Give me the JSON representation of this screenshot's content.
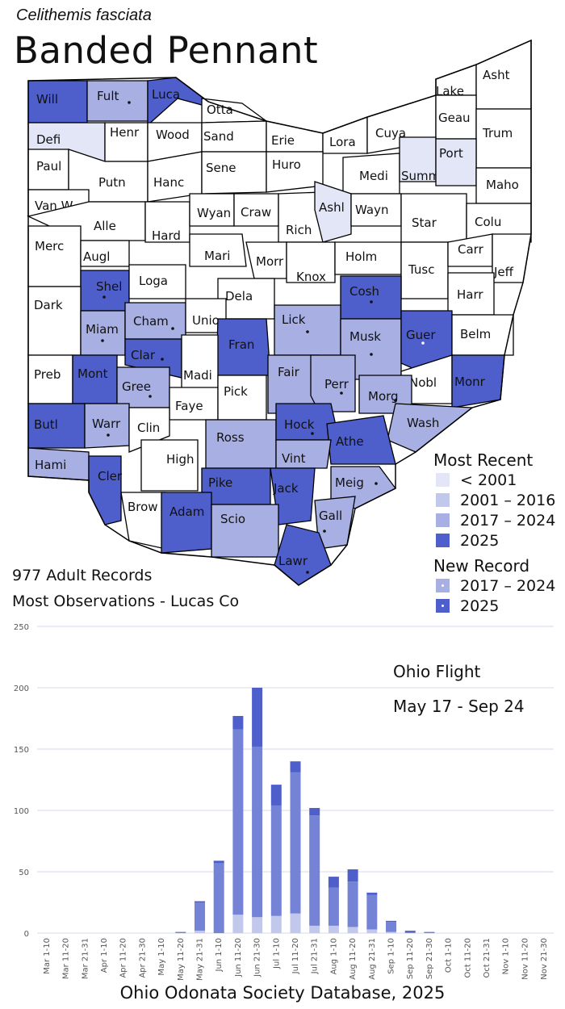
{
  "header": {
    "scientific_name": "Celithemis fasciata",
    "common_name": "Banded Pennant"
  },
  "colors": {
    "lt2001": "#e3e6f7",
    "c2001_2016": "#c2c8ec",
    "c2017_2024": "#a8b0e3",
    "c2025": "#4e5fcb",
    "none": "#ffffff"
  },
  "counties": [
    {
      "name": "Will",
      "cat": "c2025"
    },
    {
      "name": "Fult",
      "cat": "c2017_2024",
      "new": "dark"
    },
    {
      "name": "Luca",
      "cat": "c2025"
    },
    {
      "name": "Otta"
    },
    {
      "name": "Defi",
      "cat": "lt2001"
    },
    {
      "name": "Henr"
    },
    {
      "name": "Wood"
    },
    {
      "name": "Sand"
    },
    {
      "name": "Erie"
    },
    {
      "name": "Lora"
    },
    {
      "name": "Cuya"
    },
    {
      "name": "Lake"
    },
    {
      "name": "Asht"
    },
    {
      "name": "Geau"
    },
    {
      "name": "Trum"
    },
    {
      "name": "Paul"
    },
    {
      "name": "Putn"
    },
    {
      "name": "Hanc"
    },
    {
      "name": "Sene"
    },
    {
      "name": "Huro"
    },
    {
      "name": "Medi"
    },
    {
      "name": "Summ",
      "cat": "lt2001"
    },
    {
      "name": "Port",
      "cat": "lt2001"
    },
    {
      "name": "Maho"
    },
    {
      "name": "Van W"
    },
    {
      "name": "Alle"
    },
    {
      "name": "Hard"
    },
    {
      "name": "Wyan"
    },
    {
      "name": "Craw"
    },
    {
      "name": "Rich"
    },
    {
      "name": "Ashl",
      "cat": "lt2001"
    },
    {
      "name": "Wayn"
    },
    {
      "name": "Star"
    },
    {
      "name": "Colu"
    },
    {
      "name": "Merc"
    },
    {
      "name": "Augl"
    },
    {
      "name": "Mari"
    },
    {
      "name": "Morr"
    },
    {
      "name": "Knox"
    },
    {
      "name": "Holm"
    },
    {
      "name": "Tusc"
    },
    {
      "name": "Carr"
    },
    {
      "name": "Jeff"
    },
    {
      "name": "Shel",
      "cat": "c2025",
      "new": "dark"
    },
    {
      "name": "Loga"
    },
    {
      "name": "Dela"
    },
    {
      "name": "Cosh",
      "cat": "c2025",
      "new": "dark"
    },
    {
      "name": "Harr"
    },
    {
      "name": "Dark"
    },
    {
      "name": "Miam",
      "cat": "c2017_2024",
      "new": "dark"
    },
    {
      "name": "Cham",
      "cat": "c2017_2024",
      "new": "dark"
    },
    {
      "name": "Unio"
    },
    {
      "name": "Lick",
      "cat": "c2017_2024",
      "new": "dark"
    },
    {
      "name": "Musk",
      "cat": "c2017_2024",
      "new": "dark"
    },
    {
      "name": "Guer",
      "cat": "c2025",
      "new": "light"
    },
    {
      "name": "Belm"
    },
    {
      "name": "Clar",
      "cat": "c2025",
      "new": "dark"
    },
    {
      "name": "Fran",
      "cat": "c2025"
    },
    {
      "name": "Madi"
    },
    {
      "name": "Fair",
      "cat": "c2017_2024"
    },
    {
      "name": "Perr",
      "cat": "c2017_2024",
      "new": "dark"
    },
    {
      "name": "Nobl"
    },
    {
      "name": "Monr",
      "cat": "c2025"
    },
    {
      "name": "Preb"
    },
    {
      "name": "Mont",
      "cat": "c2025"
    },
    {
      "name": "Gree",
      "cat": "c2017_2024",
      "new": "dark"
    },
    {
      "name": "Faye"
    },
    {
      "name": "Pick"
    },
    {
      "name": "Morg",
      "cat": "c2017_2024",
      "new": "dark"
    },
    {
      "name": "Butl",
      "cat": "c2025"
    },
    {
      "name": "Warr",
      "cat": "c2017_2024",
      "new": "dark"
    },
    {
      "name": "Clin"
    },
    {
      "name": "Ross",
      "cat": "c2017_2024"
    },
    {
      "name": "Hock",
      "cat": "c2025",
      "new": "dark"
    },
    {
      "name": "Wash",
      "cat": "c2017_2024"
    },
    {
      "name": "Athe",
      "cat": "c2025"
    },
    {
      "name": "Hami",
      "cat": "c2017_2024"
    },
    {
      "name": "Cler",
      "cat": "c2025"
    },
    {
      "name": "High"
    },
    {
      "name": "Vint",
      "cat": "c2017_2024"
    },
    {
      "name": "Meig",
      "cat": "c2017_2024",
      "new": "dark"
    },
    {
      "name": "Pike",
      "cat": "c2025"
    },
    {
      "name": "Jack",
      "cat": "c2025"
    },
    {
      "name": "Brow"
    },
    {
      "name": "Adam",
      "cat": "c2025"
    },
    {
      "name": "Scio",
      "cat": "c2017_2024"
    },
    {
      "name": "Gall",
      "cat": "c2017_2024",
      "new": "dark"
    },
    {
      "name": "Lawr",
      "cat": "c2025",
      "new": "dark"
    }
  ],
  "legend": {
    "most_recent_title": "Most Recent",
    "items": [
      {
        "label": "< 2001",
        "cat": "lt2001"
      },
      {
        "label": "2001 – 2016",
        "cat": "c2001_2016"
      },
      {
        "label": "2017 – 2024",
        "cat": "c2017_2024"
      },
      {
        "label": "2025",
        "cat": "c2025"
      }
    ],
    "new_record_title": "New Record",
    "new_items": [
      {
        "label": "2017 – 2024",
        "cat": "c2017_2024"
      },
      {
        "label": "2025",
        "cat": "c2025"
      }
    ]
  },
  "stats": {
    "records": "977 Adult Records",
    "most_obs": "Most Observations - Lucas Co"
  },
  "chart_data": {
    "type": "bar",
    "stacked": true,
    "title": "Ohio Flight",
    "subtitle": "May 17 - Sep 24",
    "ylim": [
      0,
      250
    ],
    "yticks": [
      0,
      50,
      100,
      150,
      200,
      250
    ],
    "grid": true,
    "categories": [
      "Mar 1-10",
      "Mar 11-20",
      "Mar 21-31",
      "Apr 1-10",
      "Apr 11-20",
      "Apr 21-30",
      "May 1-10",
      "May 11-20",
      "May 21-31",
      "Jun 1-10",
      "Jun 11-20",
      "Jun 21-30",
      "Jul 1-10",
      "Jul 11-20",
      "Jul 21-31",
      "Aug 1-10",
      "Aug 11-20",
      "Aug 21-31",
      "Sep 1-10",
      "Sep 11-20",
      "Sep 21-30",
      "Oct 1-10",
      "Oct 11-20",
      "Oct 21-31",
      "Nov 1-10",
      "Nov 11-20",
      "Nov 21-30"
    ],
    "series": [
      {
        "color": "#c2c8ec",
        "values": [
          0,
          0,
          0,
          0,
          0,
          0,
          0,
          0,
          2,
          0,
          15,
          13,
          14,
          16,
          6,
          6,
          5,
          3,
          1,
          0,
          0,
          0,
          0,
          0,
          0,
          0,
          0
        ]
      },
      {
        "color": "#7583d6",
        "values": [
          0,
          0,
          0,
          0,
          0,
          0,
          0,
          1,
          23,
          57,
          151,
          139,
          90,
          115,
          90,
          31,
          37,
          28,
          8,
          1,
          1,
          0,
          0,
          0,
          0,
          0,
          0
        ]
      },
      {
        "color": "#4e5fcb",
        "values": [
          0,
          0,
          0,
          0,
          0,
          0,
          0,
          0,
          1,
          2,
          11,
          48,
          17,
          9,
          6,
          9,
          10,
          2,
          1,
          1,
          0,
          0,
          0,
          0,
          0,
          0,
          0
        ]
      }
    ]
  },
  "footer": "Ohio Odonata Society Database, 2025"
}
